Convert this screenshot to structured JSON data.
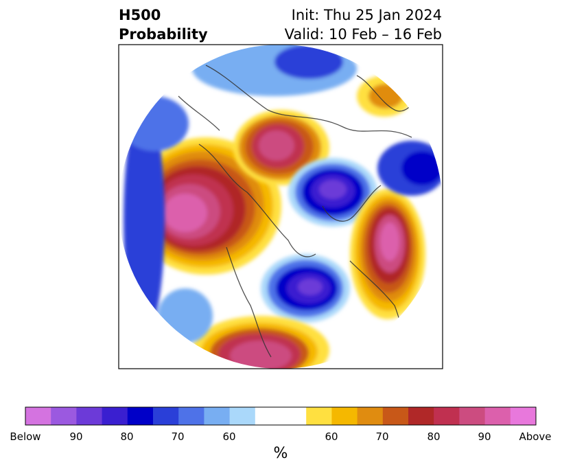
{
  "header": {
    "variable": "H500",
    "product": "Probability",
    "init": "Init: Thu 25 Jan 2024",
    "valid": "Valid: 10 Feb – 16 Feb"
  },
  "colorbar": {
    "unit": "%",
    "tick_labels": [
      "Below",
      "90",
      "80",
      "70",
      "60",
      "60",
      "70",
      "80",
      "90",
      "Above"
    ],
    "below_colors": [
      "#d473e0",
      "#9b59e0",
      "#6c3ad8",
      "#3a1fd0",
      "#0000c8",
      "#2a3fd8",
      "#4e72e8",
      "#78aef2",
      "#aad8fa"
    ],
    "neutral_color": "#ffffff",
    "above_colors": [
      "#ffe040",
      "#f5b800",
      "#e08c10",
      "#c85818",
      "#b02828",
      "#c03050",
      "#cc4c80",
      "#dc60ac",
      "#e878dc"
    ]
  }
}
